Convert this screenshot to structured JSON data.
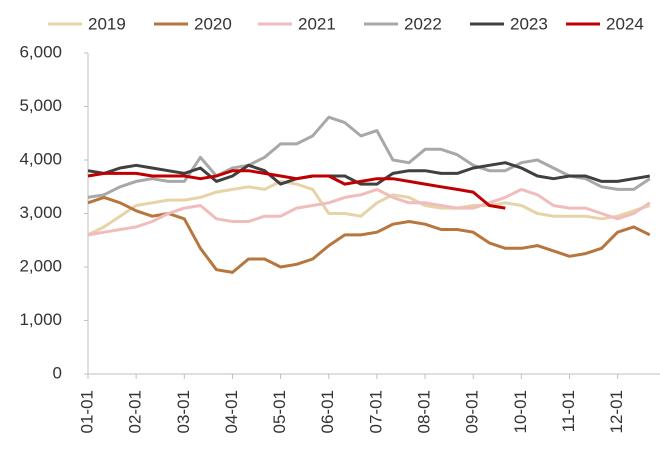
{
  "chart_data": {
    "type": "line",
    "legend": "top",
    "grid": false,
    "categories": [
      "01-01",
      null,
      null,
      "02-01",
      null,
      null,
      "03-01",
      null,
      null,
      "04-01",
      null,
      null,
      "05-01",
      null,
      null,
      "06-01",
      null,
      null,
      "07-01",
      null,
      null,
      "08-01",
      null,
      null,
      "09-01",
      null,
      null,
      "10-01",
      null,
      null,
      "11-01",
      null,
      null,
      "12-01",
      null,
      null
    ],
    "ylim": [
      0,
      6000
    ],
    "yticks": [
      0,
      {
        "value": 1000,
        "label": "1,000"
      },
      {
        "value": 2000,
        "label": "2,000"
      },
      {
        "value": 3000,
        "label": "3,000"
      },
      {
        "value": 4000,
        "label": "4,000"
      },
      {
        "value": 5000,
        "label": "5,000"
      },
      {
        "value": 6000,
        "label": "6,000"
      }
    ],
    "series": [
      {
        "name": "2019",
        "color": "#e6d3a8",
        "values": [
          2600,
          2750,
          2950,
          3150,
          3200,
          3250,
          3250,
          3300,
          3400,
          3450,
          3500,
          3450,
          3600,
          3550,
          3450,
          3000,
          3000,
          2950,
          3200,
          3350,
          3300,
          3150,
          3100,
          3100,
          3150,
          3150,
          3200,
          3150,
          3000,
          2950,
          2950,
          2950,
          2900,
          2950,
          3050,
          3150
        ]
      },
      {
        "name": "2020",
        "color": "#b8763f",
        "values": [
          3200,
          3300,
          3200,
          3050,
          2950,
          3000,
          2900,
          2350,
          1950,
          1900,
          2150,
          2150,
          2000,
          2050,
          2150,
          2400,
          2600,
          2600,
          2650,
          2800,
          2850,
          2800,
          2700,
          2700,
          2650,
          2450,
          2350,
          2350,
          2400,
          2300,
          2200,
          2250,
          2350,
          2650,
          2750,
          2600
        ]
      },
      {
        "name": "2021",
        "color": "#f0bcbc",
        "values": [
          2600,
          2650,
          2700,
          2750,
          2850,
          3000,
          3100,
          3150,
          2900,
          2850,
          2850,
          2950,
          2950,
          3100,
          3150,
          3200,
          3300,
          3350,
          3450,
          3300,
          3200,
          3200,
          3150,
          3100,
          3100,
          3200,
          3300,
          3450,
          3350,
          3150,
          3100,
          3100,
          3000,
          2900,
          3000,
          3200
        ]
      },
      {
        "name": "2022",
        "color": "#a8a8a8",
        "values": [
          3300,
          3350,
          3500,
          3600,
          3650,
          3600,
          3600,
          4050,
          3700,
          3850,
          3900,
          4050,
          4300,
          4300,
          4450,
          4800,
          4700,
          4450,
          4550,
          4000,
          3950,
          4200,
          4200,
          4100,
          3900,
          3800,
          3800,
          3950,
          4000,
          3850,
          3700,
          3650,
          3500,
          3450,
          3450,
          3650
        ]
      },
      {
        "name": "2023",
        "color": "#404040",
        "values": [
          3800,
          3750,
          3850,
          3900,
          3850,
          3800,
          3750,
          3850,
          3600,
          3700,
          3900,
          3800,
          3550,
          3650,
          3700,
          3700,
          3700,
          3550,
          3550,
          3750,
          3800,
          3800,
          3750,
          3750,
          3850,
          3900,
          3950,
          3850,
          3700,
          3650,
          3700,
          3700,
          3600,
          3600,
          3650,
          3700
        ]
      },
      {
        "name": "2024",
        "color": "#c00000",
        "values": [
          3700,
          3750,
          3750,
          3750,
          3700,
          3700,
          3700,
          3650,
          3700,
          3800,
          3800,
          3750,
          3700,
          3650,
          3700,
          3700,
          3550,
          3600,
          3650,
          3650,
          3600,
          3550,
          3500,
          3450,
          3400,
          3150,
          3100,
          null,
          null,
          null,
          null,
          null,
          null,
          null,
          null,
          null
        ]
      }
    ]
  }
}
